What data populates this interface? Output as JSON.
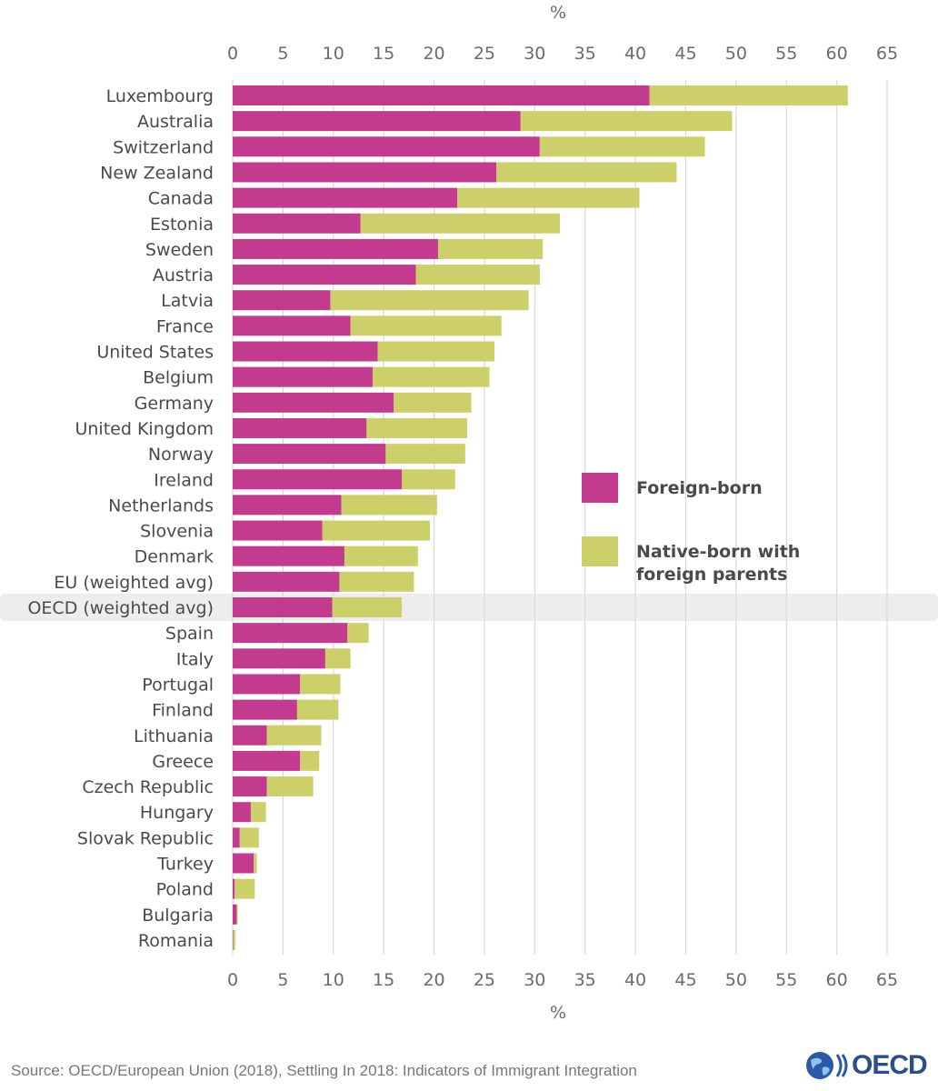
{
  "chart_data": {
    "type": "bar",
    "orientation": "horizontal",
    "stacked": true,
    "title": "",
    "xlabel": "%",
    "ylabel": "",
    "xlim": [
      0,
      65
    ],
    "xticks": [
      0,
      5,
      10,
      15,
      20,
      25,
      30,
      35,
      40,
      45,
      50,
      55,
      60,
      65
    ],
    "grid": true,
    "legend_position": "right-middle",
    "highlighted_category": "OECD (weighted avg)",
    "categories": [
      "Luxembourg",
      "Australia",
      "Switzerland",
      "New Zealand",
      "Canada",
      "Estonia",
      "Sweden",
      "Austria",
      "Latvia",
      "France",
      "United States",
      "Belgium",
      "Germany",
      "United Kingdom",
      "Norway",
      "Ireland",
      "Netherlands",
      "Slovenia",
      "Denmark",
      "EU (weighted avg)",
      "OECD (weighted avg)",
      "Spain",
      "Italy",
      "Portugal",
      "Finland",
      "Lithuania",
      "Greece",
      "Czech Republic",
      "Hungary",
      "Slovak Republic",
      "Turkey",
      "Poland",
      "Bulgaria",
      "Romania"
    ],
    "series": [
      {
        "name": "Foreign-born",
        "color": "#c23b8e",
        "values": [
          41.4,
          28.6,
          30.5,
          26.2,
          22.3,
          12.7,
          20.4,
          18.2,
          9.7,
          11.7,
          14.4,
          13.9,
          16.0,
          13.3,
          15.2,
          16.8,
          10.8,
          8.9,
          11.1,
          10.6,
          9.9,
          11.4,
          9.2,
          6.7,
          6.4,
          3.4,
          6.7,
          3.4,
          1.8,
          0.7,
          2.1,
          0.2,
          0.4,
          0.05
        ]
      },
      {
        "name": "Native-born with foreign parents",
        "color": "#cdd06a",
        "values": [
          19.7,
          21.0,
          16.4,
          17.9,
          18.1,
          19.8,
          10.4,
          12.3,
          19.7,
          15.0,
          11.6,
          11.6,
          7.7,
          10.0,
          7.9,
          5.3,
          9.5,
          10.7,
          7.3,
          7.4,
          6.9,
          2.1,
          2.5,
          4.0,
          4.1,
          5.4,
          1.9,
          4.6,
          1.5,
          1.9,
          0.3,
          2.0,
          0.1,
          0.2
        ]
      }
    ]
  },
  "legend": {
    "items": [
      {
        "lines": [
          "Foreign-born"
        ],
        "color": "#c23b8e"
      },
      {
        "lines": [
          "Native-born with",
          "foreign parents"
        ],
        "color": "#cdd06a"
      }
    ]
  },
  "footer": {
    "source": "Source: OECD/European Union (2018), Settling In 2018: Indicators of Immigrant Integration",
    "logo_text": "OECD"
  }
}
